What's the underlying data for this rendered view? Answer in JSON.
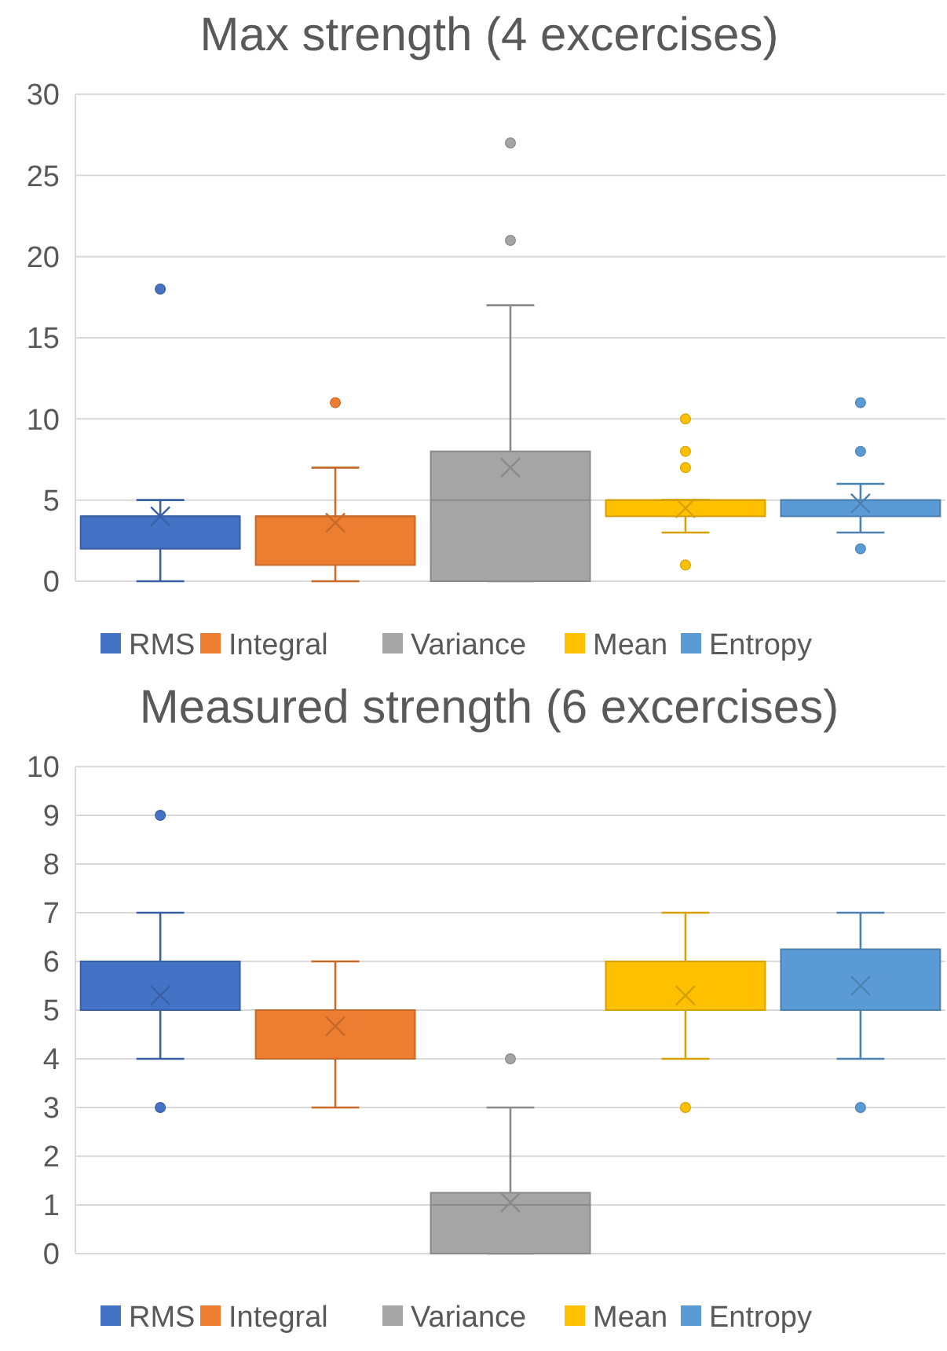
{
  "chart_data": [
    {
      "type": "box",
      "title": "Max strength (4 excercises)",
      "categories": [
        null
      ],
      "ylim": [
        0,
        30
      ],
      "yticks": [
        0,
        5,
        10,
        15,
        20,
        25,
        30
      ],
      "grid": "y",
      "legend": "bottom",
      "tick_labels": "y",
      "series": [
        {
          "name": "RMS",
          "color": "#4472c4",
          "boxes": [
            {
              "low": 0,
              "q1": 2,
              "median": 4,
              "q3": 4,
              "high": 5,
              "mean": 4,
              "outliers": [
                18
              ]
            }
          ]
        },
        {
          "name": "Integral",
          "color": "#ed7d31",
          "boxes": [
            {
              "low": 0,
              "q1": 1,
              "median": 4,
              "q3": 4,
              "high": 7,
              "mean": 3.6,
              "outliers": [
                11
              ]
            }
          ]
        },
        {
          "name": "Variance",
          "color": "#a5a5a5",
          "boxes": [
            {
              "low": 0,
              "q1": 0,
              "median": 5,
              "q3": 8,
              "high": 17,
              "mean": 7,
              "outliers": [
                21,
                27
              ]
            }
          ]
        },
        {
          "name": "Mean",
          "color": "#ffc000",
          "boxes": [
            {
              "low": 3,
              "q1": 4,
              "median": 5,
              "q3": 5,
              "high": 5,
              "mean": 4.5,
              "outliers": [
                1,
                7,
                8,
                10
              ]
            }
          ]
        },
        {
          "name": "Entropy",
          "color": "#5b9bd5",
          "boxes": [
            {
              "low": 3,
              "q1": 4,
              "median": 5,
              "q3": 5,
              "high": 6,
              "mean": 4.8,
              "outliers": [
                2,
                8,
                11
              ]
            }
          ]
        }
      ]
    },
    {
      "type": "box",
      "title": "Measured strength (6 excercises)",
      "categories": [
        null
      ],
      "ylim": [
        0,
        10
      ],
      "yticks": [
        0,
        1,
        2,
        3,
        4,
        5,
        6,
        7,
        8,
        9,
        10
      ],
      "grid": "y",
      "legend": "bottom",
      "tick_labels": "y",
      "series": [
        {
          "name": "RMS",
          "color": "#4472c4",
          "boxes": [
            {
              "low": 4,
              "q1": 5,
              "median": 5,
              "q3": 6,
              "high": 7,
              "mean": 5.3,
              "outliers": [
                3,
                9
              ]
            }
          ]
        },
        {
          "name": "Integral",
          "color": "#ed7d31",
          "boxes": [
            {
              "low": 3,
              "q1": 4,
              "median": 5,
              "q3": 5,
              "high": 6,
              "mean": 4.67
            }
          ]
        },
        {
          "name": "Variance",
          "color": "#a5a5a5",
          "boxes": [
            {
              "low": 0,
              "q1": 0,
              "median": 1,
              "q3": 1.25,
              "high": 3,
              "mean": 1.05,
              "outliers": [
                4
              ]
            }
          ]
        },
        {
          "name": "Mean",
          "color": "#ffc000",
          "boxes": [
            {
              "low": 4,
              "q1": 5,
              "median": 5,
              "q3": 6,
              "high": 7,
              "mean": 5.3,
              "outliers": [
                3
              ]
            }
          ]
        },
        {
          "name": "Entropy",
          "color": "#5b9bd5",
          "boxes": [
            {
              "low": 4,
              "q1": 5,
              "median": 5,
              "q3": 6.25,
              "high": 7,
              "mean": 5.5,
              "outliers": [
                3
              ]
            }
          ]
        }
      ]
    }
  ]
}
